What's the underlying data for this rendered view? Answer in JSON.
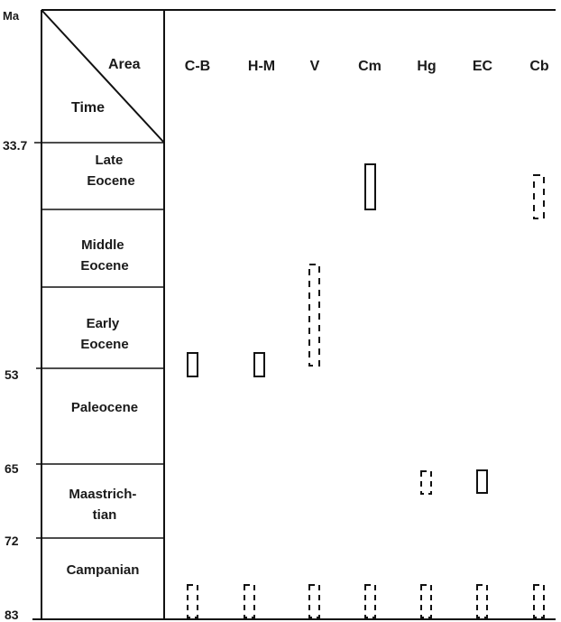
{
  "axis": {
    "unit_label": "Ma",
    "ticks": [
      "33.7",
      "53",
      "65",
      "72",
      "83"
    ]
  },
  "header": {
    "area_label": "Area",
    "time_label": "Time"
  },
  "areas": [
    "C-B",
    "H-M",
    "V",
    "Cm",
    "Hg",
    "EC",
    "Cb"
  ],
  "periods": [
    {
      "lines": [
        "Late",
        "Eocene"
      ]
    },
    {
      "lines": [
        "Middle",
        "Eocene"
      ]
    },
    {
      "lines": [
        "Early",
        "Eocene"
      ]
    },
    {
      "lines": [
        "Paleocene"
      ]
    },
    {
      "lines": [
        "Maastrich-",
        "tian"
      ]
    },
    {
      "lines": [
        "Campanian"
      ]
    }
  ],
  "ranges": [
    {
      "area": "C-B",
      "style": "solid",
      "period": "Early Eocene / Paleocene boundary"
    },
    {
      "area": "H-M",
      "style": "solid",
      "period": "Early Eocene / Paleocene boundary"
    },
    {
      "area": "V",
      "style": "dashed",
      "period": "Middle Eocene – Early Eocene"
    },
    {
      "area": "Cm",
      "style": "solid",
      "period": "Late Eocene"
    },
    {
      "area": "Cb",
      "style": "dashed",
      "period": "Late Eocene"
    },
    {
      "area": "Hg",
      "style": "dashed",
      "period": "Maastrichtian"
    },
    {
      "area": "EC",
      "style": "solid",
      "period": "Maastrichtian"
    },
    {
      "area": "C-B",
      "style": "dashed",
      "period": "Campanian"
    },
    {
      "area": "H-M",
      "style": "dashed",
      "period": "Campanian"
    },
    {
      "area": "V",
      "style": "dashed",
      "period": "Campanian"
    },
    {
      "area": "Cm",
      "style": "dashed",
      "period": "Campanian"
    },
    {
      "area": "Hg",
      "style": "dashed",
      "period": "Campanian"
    },
    {
      "area": "EC",
      "style": "dashed",
      "period": "Campanian"
    },
    {
      "area": "Cb",
      "style": "dashed",
      "period": "Campanian"
    }
  ]
}
